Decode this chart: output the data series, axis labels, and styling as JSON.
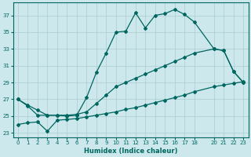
{
  "xlabel": "Humidex (Indice chaleur)",
  "bg_color": "#cce8ec",
  "grid_color": "#aaccd0",
  "line_color": "#006660",
  "xlim": [
    -0.5,
    23.5
  ],
  "ylim": [
    22.5,
    38.5
  ],
  "xticks": [
    0,
    1,
    2,
    3,
    4,
    5,
    6,
    7,
    8,
    9,
    10,
    11,
    12,
    13,
    14,
    15,
    16,
    17,
    18,
    20,
    21,
    22,
    23
  ],
  "yticks": [
    23,
    25,
    27,
    29,
    31,
    33,
    35,
    37
  ],
  "line_top_x": [
    0,
    1,
    2,
    3,
    4,
    5,
    6,
    7,
    8,
    9,
    10,
    11,
    12,
    13,
    14,
    15,
    16,
    17,
    18,
    20,
    21,
    22,
    23
  ],
  "line_top_y": [
    27.0,
    26.2,
    25.1,
    25.1,
    25.1,
    25.0,
    25.1,
    27.2,
    30.2,
    32.5,
    35.0,
    35.1,
    37.3,
    35.5,
    37.0,
    37.2,
    37.7,
    37.1,
    36.2,
    33.0,
    32.8,
    30.3,
    29.0
  ],
  "line_mid_x": [
    0,
    1,
    2,
    3,
    4,
    5,
    6,
    7,
    8,
    9,
    10,
    11,
    12,
    13,
    14,
    15,
    16,
    17,
    18,
    20,
    21,
    22,
    23
  ],
  "line_mid_y": [
    27.0,
    26.3,
    25.7,
    25.1,
    25.1,
    25.1,
    25.2,
    25.5,
    26.5,
    27.5,
    28.5,
    29.0,
    29.5,
    30.0,
    30.5,
    31.0,
    31.5,
    32.0,
    32.5,
    33.0,
    32.8,
    30.3,
    29.0
  ],
  "line_bot_x": [
    0,
    1,
    2,
    3,
    4,
    5,
    6,
    7,
    8,
    9,
    10,
    11,
    12,
    13,
    14,
    15,
    16,
    17,
    18,
    20,
    21,
    22,
    23
  ],
  "line_bot_y": [
    24.0,
    24.2,
    24.3,
    23.2,
    24.5,
    24.6,
    24.7,
    24.9,
    25.1,
    25.3,
    25.5,
    25.8,
    26.0,
    26.3,
    26.6,
    26.9,
    27.2,
    27.5,
    27.9,
    28.5,
    28.7,
    28.9,
    29.1
  ]
}
